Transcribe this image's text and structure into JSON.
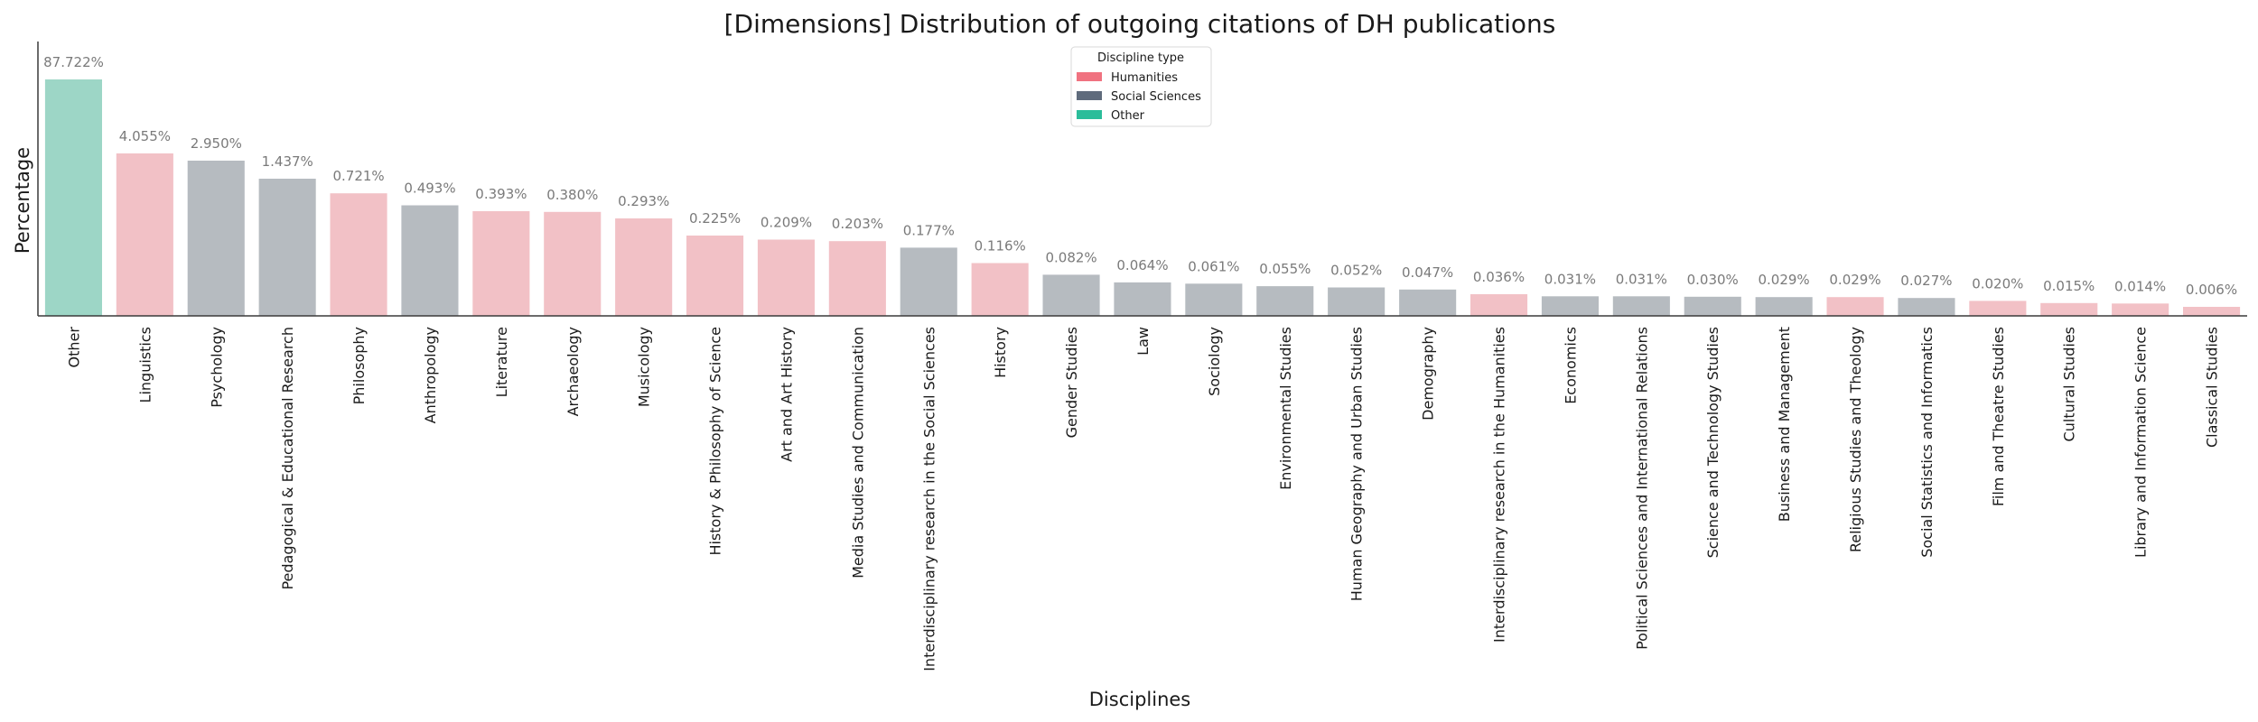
{
  "chart_data": {
    "type": "bar",
    "title": "[Dimensions] Distribution of outgoing citations of DH publications",
    "xlabel": "Disciplines",
    "ylabel": "Percentage",
    "grid": false,
    "legend": {
      "title": "Discipline type",
      "placement": "top-center",
      "entries": [
        {
          "key": "humanities",
          "label": "Humanities",
          "color": "#f07280"
        },
        {
          "key": "social",
          "label": "Social Sciences",
          "color": "#5f6b7c"
        },
        {
          "key": "other",
          "label": "Other",
          "color": "#2bbd9a"
        }
      ]
    },
    "bar_colors": {
      "humanities": "#f2c1c6",
      "social": "#b6bbc0",
      "other": "#9dd6c6"
    },
    "bars": [
      {
        "category": "Other",
        "value": 87.722,
        "label": "87.722%",
        "type": "other"
      },
      {
        "category": "Linguistics",
        "value": 4.055,
        "label": "4.055%",
        "type": "humanities"
      },
      {
        "category": "Psychology",
        "value": 2.95,
        "label": "2.950%",
        "type": "social"
      },
      {
        "category": "Pedagogical & Educational Research",
        "value": 1.437,
        "label": "1.437%",
        "type": "social"
      },
      {
        "category": "Philosophy",
        "value": 0.721,
        "label": "0.721%",
        "type": "humanities"
      },
      {
        "category": "Anthropology",
        "value": 0.493,
        "label": "0.493%",
        "type": "social"
      },
      {
        "category": "Literature",
        "value": 0.393,
        "label": "0.393%",
        "type": "humanities"
      },
      {
        "category": "Archaeology",
        "value": 0.38,
        "label": "0.380%",
        "type": "humanities"
      },
      {
        "category": "Musicology",
        "value": 0.293,
        "label": "0.293%",
        "type": "humanities"
      },
      {
        "category": "History & Philosophy of Science",
        "value": 0.225,
        "label": "0.225%",
        "type": "humanities"
      },
      {
        "category": "Art and Art History",
        "value": 0.209,
        "label": "0.209%",
        "type": "humanities"
      },
      {
        "category": "Media Studies and Communication",
        "value": 0.203,
        "label": "0.203%",
        "type": "humanities"
      },
      {
        "category": "Interdisciplinary research in the Social Sciences",
        "value": 0.177,
        "label": "0.177%",
        "type": "social"
      },
      {
        "category": "History",
        "value": 0.116,
        "label": "0.116%",
        "type": "humanities"
      },
      {
        "category": "Gender Studies",
        "value": 0.082,
        "label": "0.082%",
        "type": "social"
      },
      {
        "category": "Law",
        "value": 0.064,
        "label": "0.064%",
        "type": "social"
      },
      {
        "category": "Sociology",
        "value": 0.061,
        "label": "0.061%",
        "type": "social"
      },
      {
        "category": "Environmental Studies",
        "value": 0.055,
        "label": "0.055%",
        "type": "social"
      },
      {
        "category": "Human Geography and Urban Studies",
        "value": 0.052,
        "label": "0.052%",
        "type": "social"
      },
      {
        "category": "Demography",
        "value": 0.047,
        "label": "0.047%",
        "type": "social"
      },
      {
        "category": "Interdisciplinary research in the Humanities",
        "value": 0.036,
        "label": "0.036%",
        "type": "humanities"
      },
      {
        "category": "Economics",
        "value": 0.031,
        "label": "0.031%",
        "type": "social"
      },
      {
        "category": "Political Sciences and International Relations",
        "value": 0.031,
        "label": "0.031%",
        "type": "social"
      },
      {
        "category": "Science and Technology Studies",
        "value": 0.03,
        "label": "0.030%",
        "type": "social"
      },
      {
        "category": "Business and Management",
        "value": 0.029,
        "label": "0.029%",
        "type": "social"
      },
      {
        "category": "Religious Studies and Theology",
        "value": 0.029,
        "label": "0.029%",
        "type": "humanities"
      },
      {
        "category": "Social Statistics and Informatics",
        "value": 0.027,
        "label": "0.027%",
        "type": "social"
      },
      {
        "category": "Film and Theatre Studies",
        "value": 0.02,
        "label": "0.020%",
        "type": "humanities"
      },
      {
        "category": "Cultural Studies",
        "value": 0.015,
        "label": "0.015%",
        "type": "humanities"
      },
      {
        "category": "Library and Information Science",
        "value": 0.014,
        "label": "0.014%",
        "type": "humanities"
      },
      {
        "category": "Classical Studies",
        "value": 0.006,
        "label": "0.006%",
        "type": "humanities"
      }
    ]
  }
}
